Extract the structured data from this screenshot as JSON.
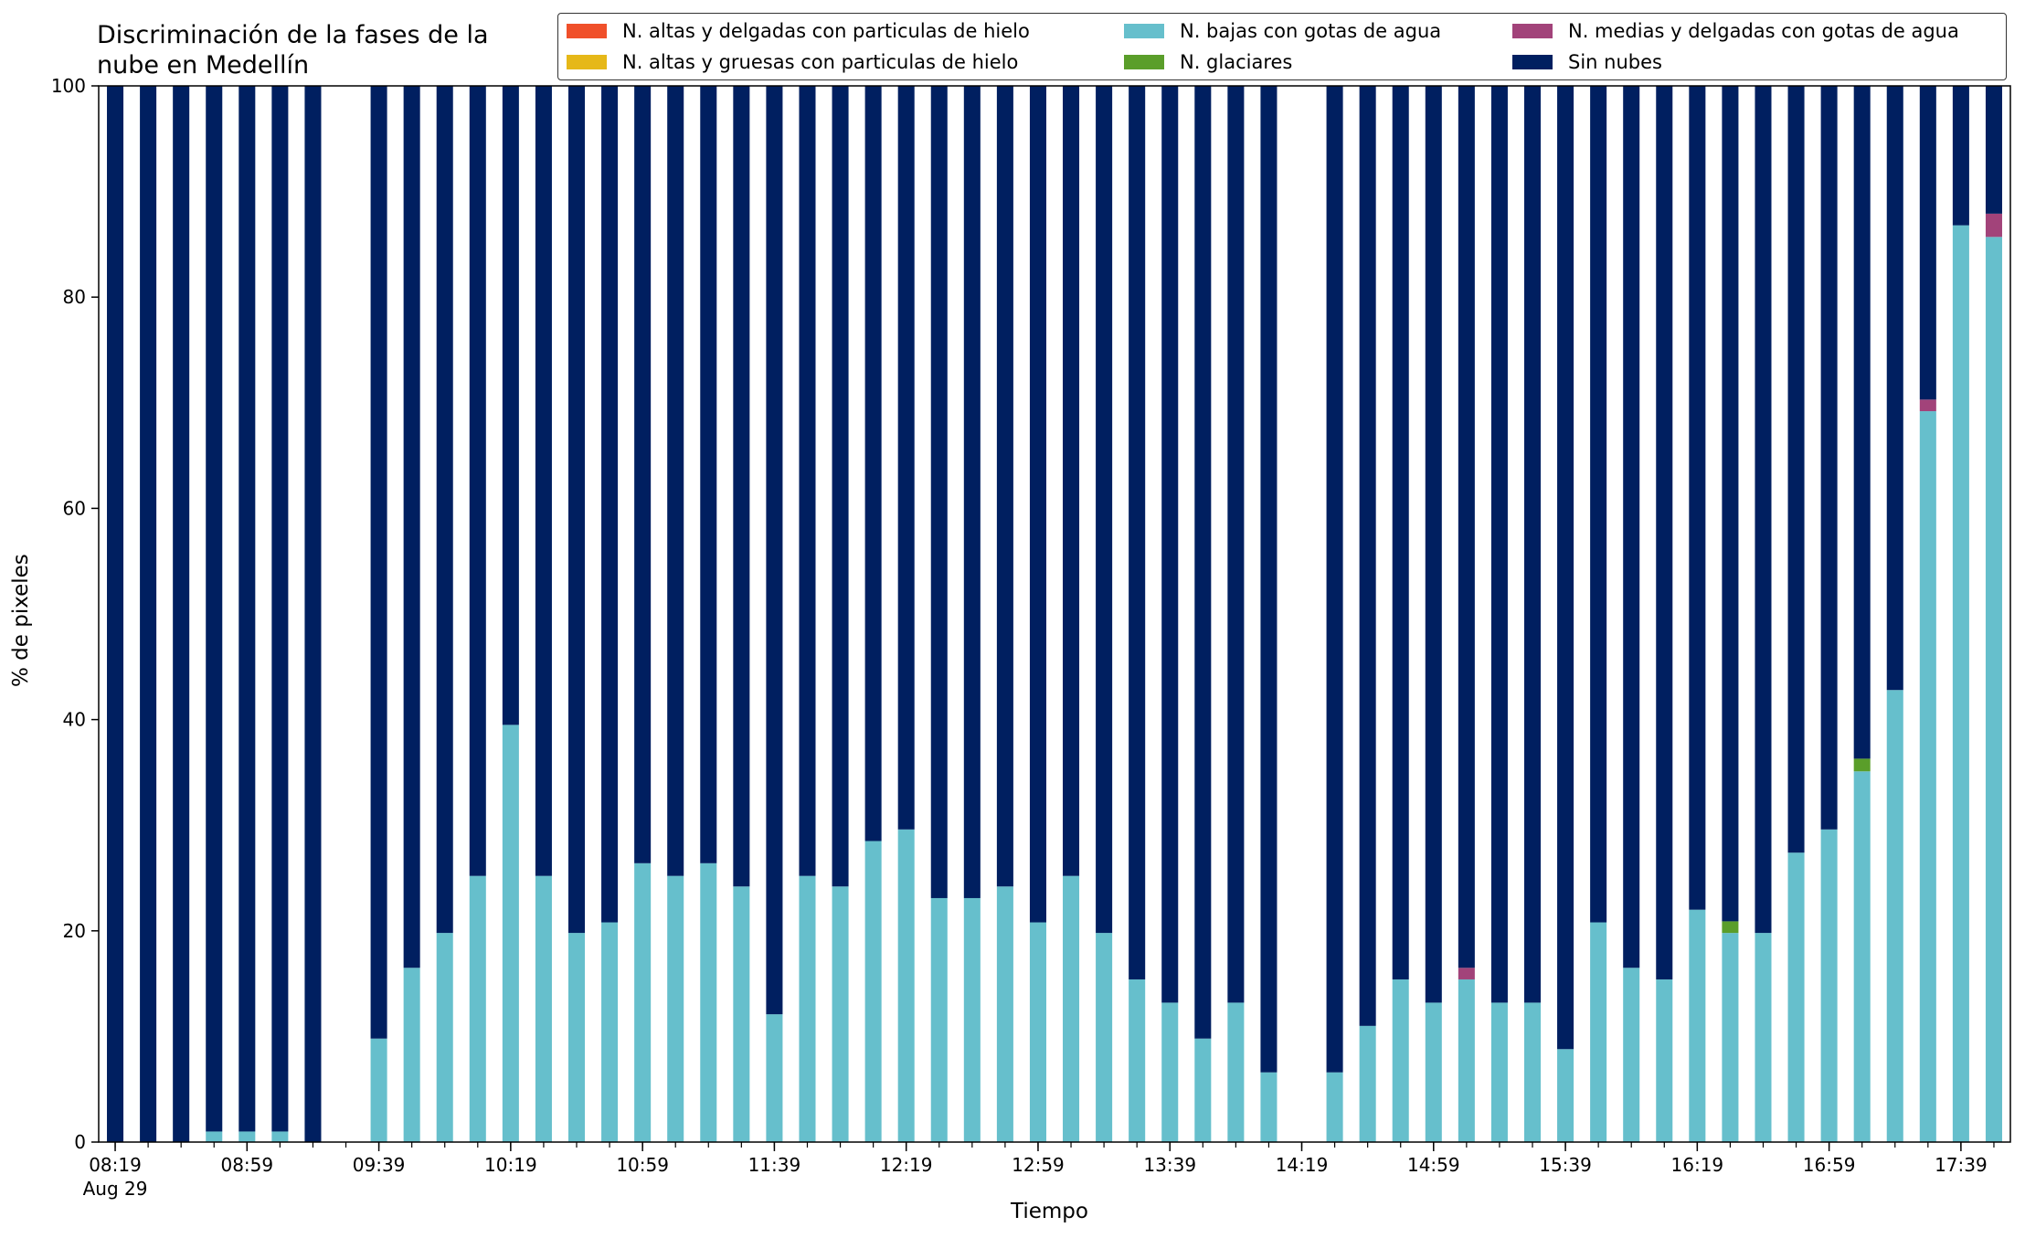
{
  "chart_data": {
    "type": "bar",
    "stacked": true,
    "title": "Discriminación de la fases de la\nnube en Medellín",
    "xlabel": "Tiempo",
    "ylabel": "% de pixeles",
    "ylim": [
      0,
      100
    ],
    "yticks": [
      "0",
      "20",
      "40",
      "60",
      "80",
      "100"
    ],
    "xticks": [
      "08:19",
      "08:59",
      "09:39",
      "10:19",
      "10:59",
      "11:39",
      "12:19",
      "12:59",
      "13:39",
      "14:19",
      "14:59",
      "15:39",
      "16:19",
      "16:59",
      "17:39"
    ],
    "xtick_date": "Aug 29",
    "categories": [
      "08:19",
      "08:29",
      "08:39",
      "08:49",
      "08:59",
      "09:09",
      "09:19",
      "09:29",
      "09:39",
      "09:49",
      "09:59",
      "10:09",
      "10:19",
      "10:29",
      "10:39",
      "10:49",
      "10:59",
      "11:09",
      "11:19",
      "11:29",
      "11:39",
      "11:49",
      "11:59",
      "12:09",
      "12:19",
      "12:29",
      "12:39",
      "12:49",
      "12:59",
      "13:09",
      "13:19",
      "13:29",
      "13:39",
      "13:49",
      "13:59",
      "14:09",
      "14:19",
      "14:29",
      "14:39",
      "14:49",
      "14:59",
      "15:09",
      "15:19",
      "15:29",
      "15:39",
      "15:49",
      "15:59",
      "16:09",
      "16:19",
      "16:29",
      "16:39",
      "16:49",
      "16:59",
      "17:09",
      "17:19",
      "17:29",
      "17:39",
      "17:49"
    ],
    "grid": false,
    "legend_position": "top-right",
    "series": [
      {
        "name": "N. altas y delgadas con particulas de hielo",
        "color": "#f0502a",
        "values": [
          0,
          0,
          0,
          0,
          0,
          0,
          0,
          null,
          0,
          0,
          0,
          0,
          0,
          0,
          0,
          0,
          0,
          0,
          0,
          0,
          0,
          0,
          0,
          0,
          0,
          0,
          0,
          0,
          0,
          0,
          0,
          0,
          0,
          0,
          0,
          0,
          null,
          0,
          0,
          0,
          0,
          0,
          0,
          0,
          0,
          0,
          0,
          0,
          0,
          0,
          0,
          0,
          0,
          0,
          0,
          0,
          0,
          0
        ]
      },
      {
        "name": "N. altas y gruesas con particulas de hielo",
        "color": "#e6b818",
        "values": [
          0,
          0,
          0,
          0,
          0,
          0,
          0,
          null,
          0,
          0,
          0,
          0,
          0,
          0,
          0,
          0,
          0,
          0,
          0,
          0,
          0,
          0,
          0,
          0,
          0,
          0,
          0,
          0,
          0,
          0,
          0,
          0,
          0,
          0,
          0,
          0,
          null,
          0,
          0,
          0,
          0,
          0,
          0,
          0,
          0,
          0,
          0,
          0,
          0,
          0,
          0,
          0,
          0,
          0,
          0,
          0,
          0,
          0
        ]
      },
      {
        "name": "N. bajas con gotas de agua",
        "color": "#66bfcc",
        "values": [
          0,
          0,
          0,
          1,
          1,
          1,
          0,
          null,
          9.8,
          16.5,
          19.8,
          25.2,
          39.5,
          25.2,
          19.8,
          20.8,
          26.4,
          25.2,
          26.4,
          24.2,
          12.1,
          25.2,
          24.2,
          28.5,
          29.6,
          23.1,
          23.1,
          24.2,
          20.8,
          25.2,
          19.8,
          15.4,
          13.2,
          9.8,
          13.2,
          6.6,
          null,
          6.6,
          11,
          15.4,
          13.2,
          15.4,
          13.2,
          13.2,
          8.8,
          20.8,
          16.5,
          15.4,
          22,
          19.8,
          19.8,
          27.4,
          29.6,
          35.1,
          42.8,
          69.2,
          86.8,
          85.7
        ]
      },
      {
        "name": "N. glaciares",
        "color": "#5a9e2a",
        "values": [
          0,
          0,
          0,
          0,
          0,
          0,
          0,
          null,
          0,
          0,
          0,
          0,
          0,
          0,
          0,
          0,
          0,
          0,
          0,
          0,
          0,
          0,
          0,
          0,
          0,
          0,
          0,
          0,
          0,
          0,
          0,
          0,
          0,
          0,
          0,
          0,
          null,
          0,
          0,
          0,
          0,
          0,
          0,
          0,
          0,
          0,
          0,
          0,
          0,
          1.1,
          0,
          0,
          0,
          1.2,
          0,
          0,
          0,
          0
        ]
      },
      {
        "name": "N. medias y delgadas con gotas de agua",
        "color": "#a2437a",
        "values": [
          0,
          0,
          0,
          0,
          0,
          0,
          0,
          null,
          0,
          0,
          0,
          0,
          0,
          0,
          0,
          0,
          0,
          0,
          0,
          0,
          0,
          0,
          0,
          0,
          0,
          0,
          0,
          0,
          0,
          0,
          0,
          0,
          0,
          0,
          0,
          0,
          null,
          0,
          0,
          0,
          0,
          1.1,
          0,
          0,
          0,
          0,
          0,
          0,
          0,
          0,
          0,
          0,
          0,
          0,
          0,
          1.1,
          0,
          2.2
        ]
      },
      {
        "name": "Sin nubes",
        "color": "#001f60",
        "values": [
          100,
          100,
          100,
          99,
          99,
          99,
          100,
          null,
          90.2,
          83.5,
          80.2,
          74.8,
          60.5,
          74.8,
          80.2,
          79.2,
          73.6,
          74.8,
          73.6,
          75.8,
          87.9,
          74.8,
          75.8,
          71.5,
          70.4,
          76.9,
          76.9,
          75.8,
          79.2,
          74.8,
          80.2,
          84.6,
          86.8,
          90.2,
          86.8,
          93.4,
          null,
          93.4,
          89,
          84.6,
          86.8,
          83.5,
          86.8,
          86.8,
          91.2,
          79.2,
          83.5,
          84.6,
          78,
          79.1,
          80.2,
          72.6,
          70.4,
          63.7,
          57.2,
          29.7,
          13.2,
          12.1
        ]
      }
    ]
  }
}
